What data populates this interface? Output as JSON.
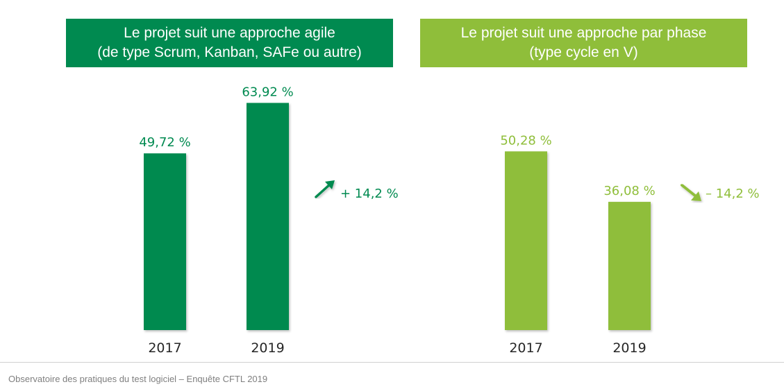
{
  "colors": {
    "agile": "#008a50",
    "phase": "#8fbe3a",
    "category_text": "#262626",
    "footer_text": "#7f7f7f"
  },
  "footer": "Observatoire des pratiques du test logiciel – Enquête CFTL 2019",
  "chart_data": [
    {
      "type": "bar",
      "title_lines": [
        "Le projet suit une approche agile",
        "(de type Scrum, Kanban, SAFe ou autre)"
      ],
      "categories": [
        "2017",
        "2019"
      ],
      "values": [
        49.72,
        63.92
      ],
      "value_labels": [
        "49,72 %",
        "63,92 %"
      ],
      "unit": "%",
      "ylim": [
        0,
        64
      ],
      "grid": false,
      "xlabel": "",
      "ylabel": "",
      "annotation": {
        "text": "+ 14,2 %",
        "direction": "up",
        "icon": "arrow-up-right-icon"
      },
      "color_key": "agile"
    },
    {
      "type": "bar",
      "title_lines": [
        "Le projet suit une approche par phase",
        "(type cycle en V)"
      ],
      "categories": [
        "2017",
        "2019"
      ],
      "values": [
        50.28,
        36.08
      ],
      "value_labels": [
        "50,28 %",
        "36,08 %"
      ],
      "unit": "%",
      "ylim": [
        0,
        64
      ],
      "grid": false,
      "xlabel": "",
      "ylabel": "",
      "annotation": {
        "text": "– 14,2 %",
        "direction": "down",
        "icon": "arrow-down-right-icon"
      },
      "color_key": "phase"
    }
  ]
}
